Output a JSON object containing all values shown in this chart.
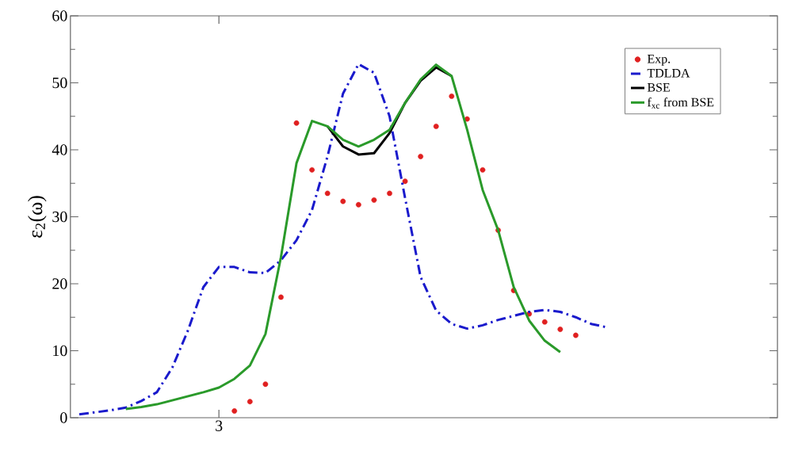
{
  "chart_data": {
    "type": "line",
    "ylabel": "ε$_{2}$(ω)",
    "categories": [
      null,
      null,
      null,
      null,
      null,
      null,
      null,
      null,
      null,
      "3",
      null,
      null,
      null,
      null,
      null,
      null,
      null,
      null,
      null,
      null,
      null,
      null,
      null,
      null,
      null,
      null,
      null,
      null,
      null,
      null,
      null,
      null,
      null,
      null,
      null,
      null,
      null,
      null,
      null,
      null,
      null,
      null,
      null,
      null,
      null,
      null
    ],
    "ylim": [
      0,
      60
    ],
    "yticks": [
      0,
      10,
      20,
      30,
      40,
      50,
      60
    ],
    "legend": "top right",
    "grid": false,
    "series": [
      {
        "name": "Exp.",
        "type": "scatter",
        "marker": "circle",
        "color": "#e02020",
        "values": [
          null,
          null,
          null,
          null,
          null,
          null,
          null,
          null,
          null,
          null,
          1,
          2.4,
          5,
          18,
          44,
          37,
          33.5,
          32.3,
          31.8,
          32.5,
          33.5,
          35.3,
          39,
          43.5,
          48,
          44.6,
          37,
          28,
          19,
          15.5,
          14.3,
          13.2,
          12.3,
          null,
          null,
          null,
          null,
          null,
          null,
          null,
          null,
          null,
          null,
          null,
          null,
          null
        ]
      },
      {
        "name": "TDLDA",
        "marker": "none",
        "line_style": "dashdot",
        "color": "#1a1acc",
        "values": [
          0.5,
          0.8,
          1.1,
          1.5,
          2.5,
          3.8,
          7.5,
          13,
          19.5,
          22.5,
          22.5,
          21.7,
          21.6,
          23.5,
          26.5,
          31,
          39,
          48.4,
          52.8,
          51.5,
          45,
          32.8,
          21,
          16,
          14,
          13.3,
          13.8,
          14.6,
          15.2,
          15.8,
          16.1,
          15.8,
          15,
          14,
          13.5,
          null,
          null,
          null,
          null,
          null,
          null,
          null,
          null,
          null,
          null,
          null
        ]
      },
      {
        "name": "BSE",
        "marker": "none",
        "line_style": "solid",
        "color": "#000000",
        "values": [
          null,
          null,
          null,
          null,
          null,
          null,
          null,
          null,
          null,
          null,
          null,
          null,
          null,
          null,
          null,
          null,
          43.5,
          40.5,
          39.3,
          39.5,
          42.5,
          47,
          50.3,
          52.3,
          51,
          null,
          null,
          null,
          null,
          null,
          null,
          null,
          null,
          null,
          null,
          null,
          null,
          null,
          null,
          null,
          null,
          null,
          null,
          null,
          null,
          null
        ]
      },
      {
        "name": "f$_{xc}$ from BSE",
        "marker": "none",
        "line_style": "solid",
        "color": "#2a9a2a",
        "values": [
          null,
          null,
          null,
          1.3,
          1.6,
          2,
          2.6,
          3.2,
          3.8,
          4.5,
          5.8,
          7.8,
          12.5,
          24,
          38,
          44.3,
          43.5,
          41.5,
          40.5,
          41.5,
          43,
          47,
          50.5,
          52.7,
          51,
          43,
          34,
          28,
          19.5,
          14.5,
          11.5,
          9.8,
          null,
          null,
          null,
          null,
          null,
          null,
          null,
          null,
          null,
          null,
          null,
          null,
          null,
          null
        ]
      }
    ]
  }
}
